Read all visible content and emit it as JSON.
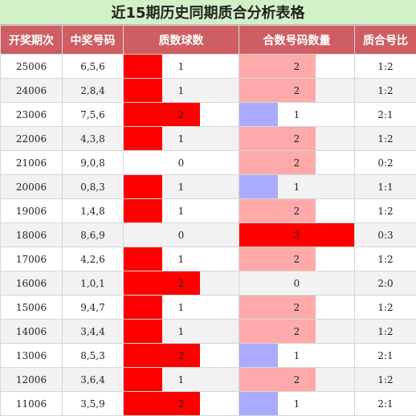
{
  "title": "近15期历史同期质合分析表格",
  "headers": [
    "开奖期次",
    "中奖号码",
    "质数球数",
    "合数号码数量",
    "质合号比"
  ],
  "colors": {
    "prime_bar": "#ff0000",
    "composite_bar_normal": "#ffaaaa",
    "composite_bar_one": "#aaaaff",
    "composite_bar_max": "#ff0000"
  },
  "max_count": 3,
  "rows": [
    {
      "issue": "25006",
      "numbers": "6,5,6",
      "prime": "1",
      "composite": "2",
      "ratio": "1:2"
    },
    {
      "issue": "24006",
      "numbers": "2,8,4",
      "prime": "1",
      "composite": "2",
      "ratio": "1:2"
    },
    {
      "issue": "23006",
      "numbers": "7,5,6",
      "prime": "2",
      "composite": "1",
      "ratio": "2:1"
    },
    {
      "issue": "22006",
      "numbers": "4,3,8",
      "prime": "1",
      "composite": "2",
      "ratio": "1:2"
    },
    {
      "issue": "21006",
      "numbers": "9,0,8",
      "prime": "0",
      "composite": "2",
      "ratio": "0:2"
    },
    {
      "issue": "20006",
      "numbers": "0,8,3",
      "prime": "1",
      "composite": "1",
      "ratio": "1:1"
    },
    {
      "issue": "19006",
      "numbers": "1,4,8",
      "prime": "1",
      "composite": "2",
      "ratio": "1:2"
    },
    {
      "issue": "18006",
      "numbers": "8,6,9",
      "prime": "0",
      "composite": "3",
      "ratio": "0:3"
    },
    {
      "issue": "17006",
      "numbers": "4,2,6",
      "prime": "1",
      "composite": "2",
      "ratio": "1:2"
    },
    {
      "issue": "16006",
      "numbers": "1,0,1",
      "prime": "2",
      "composite": "0",
      "ratio": "2:0"
    },
    {
      "issue": "15006",
      "numbers": "9,4,7",
      "prime": "1",
      "composite": "2",
      "ratio": "1:2"
    },
    {
      "issue": "14006",
      "numbers": "3,4,4",
      "prime": "1",
      "composite": "2",
      "ratio": "1:2"
    },
    {
      "issue": "13006",
      "numbers": "8,5,3",
      "prime": "2",
      "composite": "1",
      "ratio": "2:1"
    },
    {
      "issue": "12006",
      "numbers": "3,6,4",
      "prime": "1",
      "composite": "2",
      "ratio": "1:2"
    },
    {
      "issue": "11006",
      "numbers": "3,5,9",
      "prime": "2",
      "composite": "1",
      "ratio": "2:1"
    }
  ]
}
